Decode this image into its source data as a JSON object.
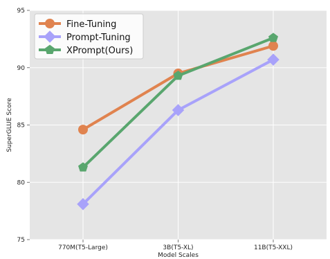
{
  "chart_data": {
    "type": "line",
    "title": "",
    "xlabel": "Model Scales",
    "ylabel": "SuperGLUE Score",
    "categories": [
      "770M(T5-Large)",
      "3B(T5-XL)",
      "11B(T5-XXL)"
    ],
    "ylim": [
      75,
      95
    ],
    "yticks": [
      75,
      80,
      85,
      90,
      95
    ],
    "grid": true,
    "legend_position": "top-left",
    "series": [
      {
        "name": "Fine-Tuning",
        "values": [
          84.6,
          89.5,
          91.9
        ],
        "color": "#e0834f",
        "marker": "circle"
      },
      {
        "name": "Prompt-Tuning",
        "values": [
          78.1,
          86.3,
          90.7
        ],
        "color": "#a8a2fa",
        "marker": "diamond"
      },
      {
        "name": "XPrompt(Ours)",
        "values": [
          81.3,
          89.3,
          92.6
        ],
        "color": "#59a66e",
        "marker": "pentagon"
      }
    ]
  }
}
